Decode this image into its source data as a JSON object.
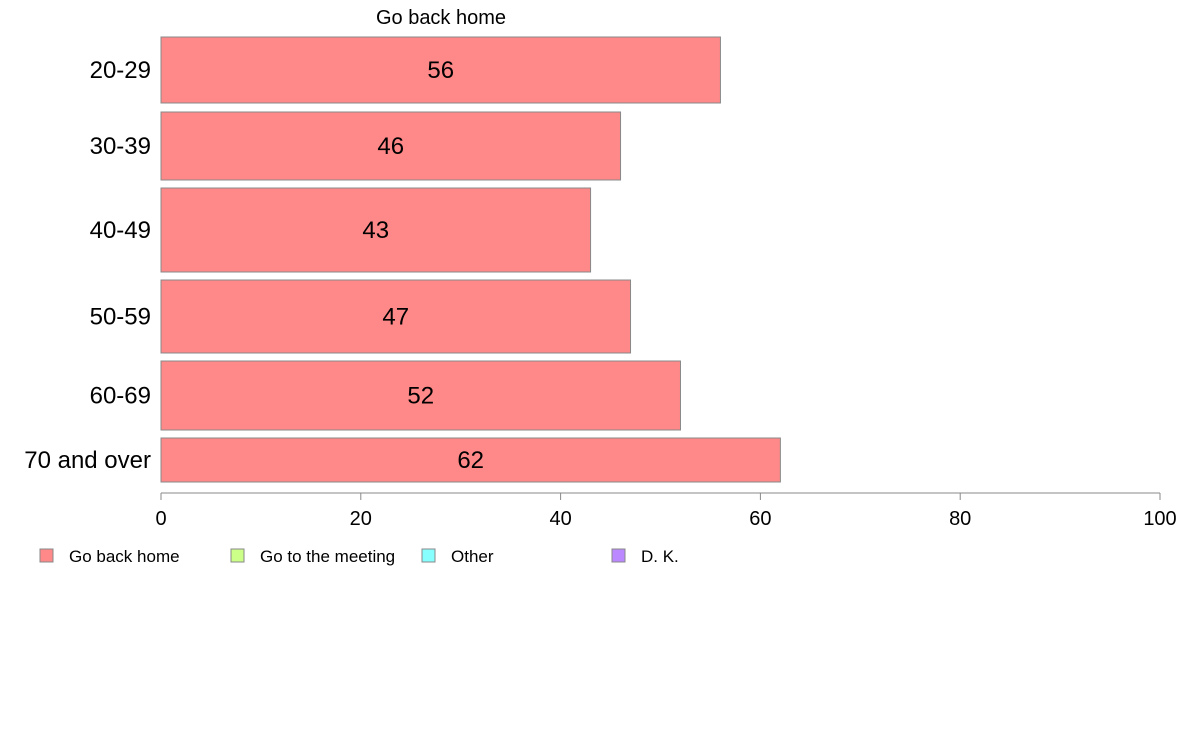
{
  "chart_data": {
    "type": "bar",
    "orientation": "horizontal",
    "title": "Go back home",
    "categories": [
      "20-29",
      "30-39",
      "40-49",
      "50-59",
      "60-69",
      "70 and over"
    ],
    "series": [
      {
        "name": "Go back home",
        "values": [
          56,
          46,
          43,
          47,
          52,
          62
        ]
      }
    ],
    "xlim": [
      0,
      100
    ],
    "xticks": [
      0,
      20,
      40,
      60,
      80,
      100
    ],
    "grid": false,
    "legend_position": "bottom",
    "legend": [
      {
        "label": "Go back home",
        "color": "#ff8888"
      },
      {
        "label": "Go to the meeting",
        "color": "#ccff88"
      },
      {
        "label": "Other",
        "color": "#88ffff"
      },
      {
        "label": "D. K.",
        "color": "#bb88ff"
      }
    ],
    "colors": {
      "bar": "#ff8888",
      "bar_stroke": "#888888",
      "axis": "#888888"
    }
  }
}
